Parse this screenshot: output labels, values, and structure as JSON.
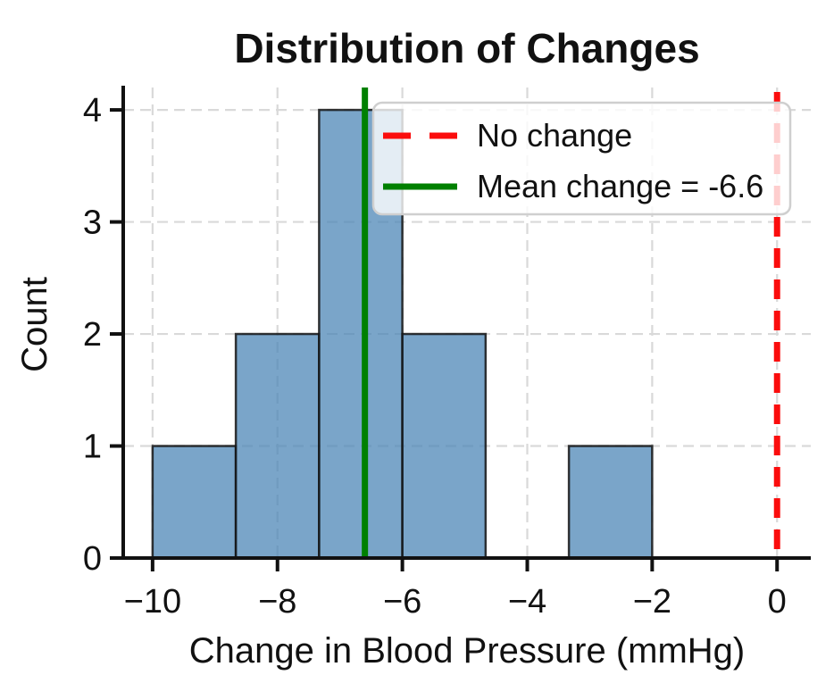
{
  "chart_data": {
    "type": "bar",
    "subtype": "histogram",
    "title": "Distribution of Changes",
    "xlabel": "Change in Blood Pressure (mmHg)",
    "ylabel": "Count",
    "bins": {
      "edges": [
        -10,
        -8.6667,
        -7.3333,
        -6,
        -4.6667,
        -3.3333,
        -2
      ],
      "counts": [
        1,
        2,
        4,
        2,
        0,
        1
      ]
    },
    "xticks": [
      -10,
      -8,
      -6,
      -4,
      -2,
      0
    ],
    "xtick_labels": [
      "−10",
      "−8",
      "−6",
      "−4",
      "−2",
      "0"
    ],
    "yticks": [
      0,
      1,
      2,
      3,
      4
    ],
    "ytick_labels": [
      "0",
      "1",
      "2",
      "3",
      "4"
    ],
    "xlim": [
      -10.47,
      0.54
    ],
    "ylim": [
      0,
      4.2
    ],
    "grid": true,
    "legend_position": "upper right",
    "vlines": [
      {
        "label": "No change",
        "x": 0,
        "style": "dashed",
        "color": "#fb0d0d"
      },
      {
        "label": "Mean change = -6.6",
        "x": -6.6,
        "style": "solid",
        "color": "#008000"
      }
    ],
    "legend": [
      {
        "label": "No change"
      },
      {
        "label": "Mean change = -6.6"
      }
    ],
    "colors": {
      "bar_fill": "#4682b4",
      "bar_fill_alpha": 0.72,
      "bar_edge": "#141414",
      "grid_line": "#d9d9d9",
      "axis_line": "#111111",
      "no_change_line": "#fb0d0d",
      "mean_line": "#008000",
      "legend_border": "#cfcfcf",
      "text": "#111111"
    },
    "stats": {
      "mean_change": -6.6,
      "n": 10
    }
  }
}
